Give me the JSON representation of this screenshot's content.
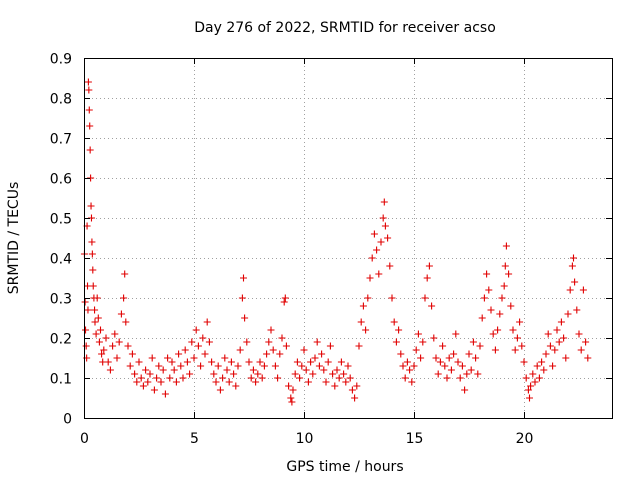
{
  "chart_data": {
    "type": "scatter",
    "title": "Day 276 of 2022, SRMTID for receiver acso",
    "xlabel": "GPS time / hours",
    "ylabel": "SRMTID / TECUs",
    "xlim": [
      0,
      24
    ],
    "ylim": [
      0,
      0.9
    ],
    "xticks": [
      0,
      5,
      10,
      15,
      20
    ],
    "yticks": [
      0,
      0.1,
      0.2,
      0.3,
      0.4,
      0.5,
      0.6,
      0.7,
      0.8,
      0.9
    ],
    "xtick_labels": [
      "0",
      "5",
      "10",
      "15",
      "20"
    ],
    "ytick_labels": [
      "0",
      "0.1",
      "0.2",
      "0.3",
      "0.4",
      "0.5",
      "0.6",
      "0.7",
      "0.8",
      "0.9"
    ],
    "grid": true,
    "marker": "+",
    "color": "#e00000",
    "series": [
      {
        "name": "SRMTID",
        "points": [
          [
            0.02,
            0.41
          ],
          [
            0.05,
            0.29
          ],
          [
            0.07,
            0.22
          ],
          [
            0.1,
            0.18
          ],
          [
            0.12,
            0.15
          ],
          [
            0.14,
            0.48
          ],
          [
            0.16,
            0.33
          ],
          [
            0.18,
            0.27
          ],
          [
            0.2,
            0.84
          ],
          [
            0.22,
            0.82
          ],
          [
            0.24,
            0.77
          ],
          [
            0.26,
            0.73
          ],
          [
            0.28,
            0.67
          ],
          [
            0.3,
            0.6
          ],
          [
            0.32,
            0.53
          ],
          [
            0.34,
            0.5
          ],
          [
            0.36,
            0.44
          ],
          [
            0.38,
            0.41
          ],
          [
            0.4,
            0.37
          ],
          [
            0.42,
            0.33
          ],
          [
            0.45,
            0.3
          ],
          [
            0.48,
            0.27
          ],
          [
            0.5,
            0.24
          ],
          [
            0.55,
            0.21
          ],
          [
            0.6,
            0.3
          ],
          [
            0.65,
            0.25
          ],
          [
            0.7,
            0.19
          ],
          [
            0.75,
            0.22
          ],
          [
            0.8,
            0.16
          ],
          [
            0.85,
            0.14
          ],
          [
            0.9,
            0.17
          ],
          [
            1.0,
            0.2
          ],
          [
            1.1,
            0.14
          ],
          [
            1.2,
            0.12
          ],
          [
            1.3,
            0.18
          ],
          [
            1.4,
            0.21
          ],
          [
            1.5,
            0.15
          ],
          [
            1.6,
            0.19
          ],
          [
            1.7,
            0.26
          ],
          [
            1.8,
            0.3
          ],
          [
            1.85,
            0.36
          ],
          [
            1.9,
            0.24
          ],
          [
            2.0,
            0.18
          ],
          [
            2.1,
            0.13
          ],
          [
            2.2,
            0.16
          ],
          [
            2.3,
            0.11
          ],
          [
            2.4,
            0.09
          ],
          [
            2.5,
            0.14
          ],
          [
            2.6,
            0.1
          ],
          [
            2.7,
            0.08
          ],
          [
            2.8,
            0.12
          ],
          [
            2.9,
            0.09
          ],
          [
            3.0,
            0.11
          ],
          [
            3.1,
            0.15
          ],
          [
            3.2,
            0.07
          ],
          [
            3.3,
            0.1
          ],
          [
            3.4,
            0.13
          ],
          [
            3.5,
            0.09
          ],
          [
            3.6,
            0.12
          ],
          [
            3.7,
            0.06
          ],
          [
            3.8,
            0.15
          ],
          [
            3.9,
            0.1
          ],
          [
            4.0,
            0.14
          ],
          [
            4.1,
            0.12
          ],
          [
            4.2,
            0.09
          ],
          [
            4.3,
            0.16
          ],
          [
            4.4,
            0.13
          ],
          [
            4.5,
            0.1
          ],
          [
            4.6,
            0.17
          ],
          [
            4.7,
            0.14
          ],
          [
            4.8,
            0.11
          ],
          [
            4.9,
            0.19
          ],
          [
            5.0,
            0.15
          ],
          [
            5.1,
            0.22
          ],
          [
            5.2,
            0.18
          ],
          [
            5.3,
            0.13
          ],
          [
            5.4,
            0.2
          ],
          [
            5.5,
            0.16
          ],
          [
            5.6,
            0.24
          ],
          [
            5.7,
            0.19
          ],
          [
            5.8,
            0.14
          ],
          [
            5.9,
            0.11
          ],
          [
            6.0,
            0.09
          ],
          [
            6.1,
            0.13
          ],
          [
            6.2,
            0.07
          ],
          [
            6.3,
            0.1
          ],
          [
            6.4,
            0.15
          ],
          [
            6.5,
            0.12
          ],
          [
            6.6,
            0.09
          ],
          [
            6.7,
            0.14
          ],
          [
            6.8,
            0.11
          ],
          [
            6.9,
            0.08
          ],
          [
            7.0,
            0.13
          ],
          [
            7.1,
            0.17
          ],
          [
            7.2,
            0.3
          ],
          [
            7.25,
            0.35
          ],
          [
            7.3,
            0.25
          ],
          [
            7.4,
            0.19
          ],
          [
            7.5,
            0.14
          ],
          [
            7.6,
            0.1
          ],
          [
            7.7,
            0.12
          ],
          [
            7.8,
            0.09
          ],
          [
            7.9,
            0.11
          ],
          [
            8.0,
            0.14
          ],
          [
            8.1,
            0.1
          ],
          [
            8.2,
            0.13
          ],
          [
            8.3,
            0.16
          ],
          [
            8.4,
            0.19
          ],
          [
            8.5,
            0.22
          ],
          [
            8.6,
            0.17
          ],
          [
            8.7,
            0.13
          ],
          [
            8.8,
            0.1
          ],
          [
            8.9,
            0.16
          ],
          [
            9.0,
            0.2
          ],
          [
            9.1,
            0.29
          ],
          [
            9.15,
            0.3
          ],
          [
            9.2,
            0.18
          ],
          [
            9.3,
            0.08
          ],
          [
            9.4,
            0.05
          ],
          [
            9.45,
            0.04
          ],
          [
            9.5,
            0.07
          ],
          [
            9.6,
            0.11
          ],
          [
            9.7,
            0.14
          ],
          [
            9.8,
            0.1
          ],
          [
            9.9,
            0.13
          ],
          [
            10.0,
            0.17
          ],
          [
            10.1,
            0.12
          ],
          [
            10.2,
            0.09
          ],
          [
            10.3,
            0.14
          ],
          [
            10.4,
            0.11
          ],
          [
            10.5,
            0.15
          ],
          [
            10.6,
            0.19
          ],
          [
            10.7,
            0.13
          ],
          [
            10.8,
            0.16
          ],
          [
            10.9,
            0.12
          ],
          [
            11.0,
            0.09
          ],
          [
            11.1,
            0.14
          ],
          [
            11.2,
            0.18
          ],
          [
            11.3,
            0.11
          ],
          [
            11.4,
            0.08
          ],
          [
            11.5,
            0.12
          ],
          [
            11.6,
            0.1
          ],
          [
            11.7,
            0.14
          ],
          [
            11.8,
            0.11
          ],
          [
            11.9,
            0.09
          ],
          [
            12.0,
            0.13
          ],
          [
            12.1,
            0.1
          ],
          [
            12.2,
            0.07
          ],
          [
            12.3,
            0.05
          ],
          [
            12.4,
            0.08
          ],
          [
            12.5,
            0.18
          ],
          [
            12.6,
            0.24
          ],
          [
            12.7,
            0.28
          ],
          [
            12.8,
            0.22
          ],
          [
            12.9,
            0.3
          ],
          [
            13.0,
            0.35
          ],
          [
            13.1,
            0.4
          ],
          [
            13.2,
            0.46
          ],
          [
            13.3,
            0.42
          ],
          [
            13.4,
            0.36
          ],
          [
            13.5,
            0.44
          ],
          [
            13.6,
            0.5
          ],
          [
            13.65,
            0.54
          ],
          [
            13.7,
            0.48
          ],
          [
            13.8,
            0.45
          ],
          [
            13.9,
            0.38
          ],
          [
            14.0,
            0.3
          ],
          [
            14.1,
            0.24
          ],
          [
            14.2,
            0.19
          ],
          [
            14.3,
            0.22
          ],
          [
            14.4,
            0.16
          ],
          [
            14.5,
            0.13
          ],
          [
            14.6,
            0.1
          ],
          [
            14.7,
            0.14
          ],
          [
            14.8,
            0.12
          ],
          [
            14.9,
            0.09
          ],
          [
            15.0,
            0.13
          ],
          [
            15.1,
            0.17
          ],
          [
            15.2,
            0.21
          ],
          [
            15.3,
            0.15
          ],
          [
            15.4,
            0.19
          ],
          [
            15.5,
            0.3
          ],
          [
            15.6,
            0.35
          ],
          [
            15.7,
            0.38
          ],
          [
            15.8,
            0.28
          ],
          [
            15.9,
            0.2
          ],
          [
            16.0,
            0.15
          ],
          [
            16.1,
            0.11
          ],
          [
            16.2,
            0.14
          ],
          [
            16.3,
            0.18
          ],
          [
            16.4,
            0.13
          ],
          [
            16.5,
            0.1
          ],
          [
            16.6,
            0.15
          ],
          [
            16.7,
            0.12
          ],
          [
            16.8,
            0.16
          ],
          [
            16.9,
            0.21
          ],
          [
            17.0,
            0.14
          ],
          [
            17.1,
            0.1
          ],
          [
            17.2,
            0.13
          ],
          [
            17.3,
            0.07
          ],
          [
            17.4,
            0.11
          ],
          [
            17.5,
            0.16
          ],
          [
            17.6,
            0.12
          ],
          [
            17.7,
            0.19
          ],
          [
            17.8,
            0.15
          ],
          [
            17.9,
            0.11
          ],
          [
            18.0,
            0.18
          ],
          [
            18.1,
            0.25
          ],
          [
            18.2,
            0.3
          ],
          [
            18.3,
            0.36
          ],
          [
            18.4,
            0.32
          ],
          [
            18.5,
            0.27
          ],
          [
            18.6,
            0.21
          ],
          [
            18.7,
            0.17
          ],
          [
            18.8,
            0.22
          ],
          [
            18.9,
            0.26
          ],
          [
            19.0,
            0.3
          ],
          [
            19.1,
            0.33
          ],
          [
            19.15,
            0.38
          ],
          [
            19.2,
            0.43
          ],
          [
            19.3,
            0.36
          ],
          [
            19.4,
            0.28
          ],
          [
            19.5,
            0.22
          ],
          [
            19.6,
            0.17
          ],
          [
            19.7,
            0.2
          ],
          [
            19.8,
            0.24
          ],
          [
            19.9,
            0.18
          ],
          [
            20.0,
            0.14
          ],
          [
            20.1,
            0.1
          ],
          [
            20.2,
            0.07
          ],
          [
            20.25,
            0.05
          ],
          [
            20.3,
            0.08
          ],
          [
            20.4,
            0.11
          ],
          [
            20.5,
            0.09
          ],
          [
            20.6,
            0.13
          ],
          [
            20.7,
            0.1
          ],
          [
            20.8,
            0.14
          ],
          [
            20.9,
            0.12
          ],
          [
            21.0,
            0.16
          ],
          [
            21.1,
            0.21
          ],
          [
            21.2,
            0.18
          ],
          [
            21.3,
            0.13
          ],
          [
            21.4,
            0.17
          ],
          [
            21.5,
            0.22
          ],
          [
            21.6,
            0.19
          ],
          [
            21.7,
            0.24
          ],
          [
            21.8,
            0.2
          ],
          [
            21.9,
            0.15
          ],
          [
            22.0,
            0.26
          ],
          [
            22.1,
            0.32
          ],
          [
            22.2,
            0.38
          ],
          [
            22.25,
            0.4
          ],
          [
            22.3,
            0.34
          ],
          [
            22.4,
            0.27
          ],
          [
            22.5,
            0.21
          ],
          [
            22.6,
            0.17
          ],
          [
            22.7,
            0.32
          ],
          [
            22.8,
            0.19
          ],
          [
            22.9,
            0.15
          ]
        ]
      }
    ]
  }
}
